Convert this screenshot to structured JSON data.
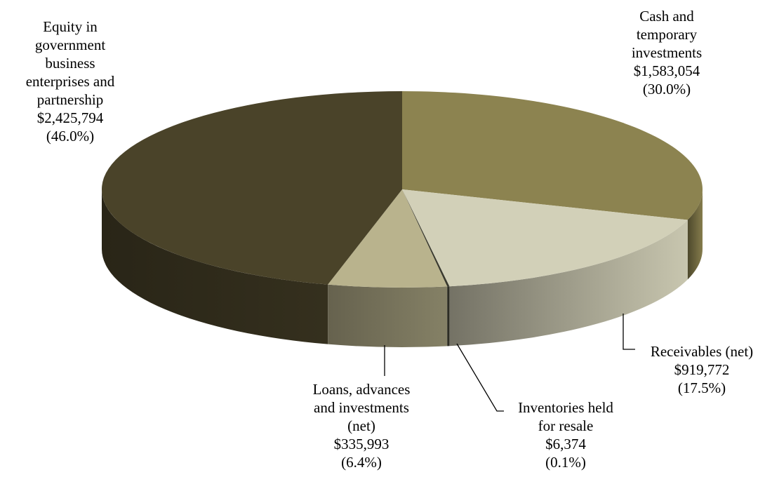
{
  "chart_data": {
    "type": "pie",
    "style": "3d",
    "slices": [
      {
        "label_lines": [
          "Cash and",
          "temporary",
          "investments"
        ],
        "value": 1583054,
        "value_text": "$1,583,054",
        "percent": 30.0,
        "percent_text": "(30.0%)",
        "color": "#8c8350"
      },
      {
        "label_lines": [
          "Receivables (net)"
        ],
        "value": 919772,
        "value_text": "$919,772",
        "percent": 17.5,
        "percent_text": "(17.5%)",
        "color": "#d2d0b8"
      },
      {
        "label_lines": [
          "Inventories held",
          "for resale"
        ],
        "value": 6374,
        "value_text": "$6,374",
        "percent": 0.1,
        "percent_text": "(0.1%)",
        "color": "#3a3a2e"
      },
      {
        "label_lines": [
          "Loans, advances",
          "and investments",
          "(net)"
        ],
        "value": 335993,
        "value_text": "$335,993",
        "percent": 6.4,
        "percent_text": "(6.4%)",
        "color": "#b9b38d"
      },
      {
        "label_lines": [
          "Equity in",
          "government",
          "business",
          "enterprises and",
          "partnership"
        ],
        "value": 2425794,
        "value_text": "$2,425,794",
        "percent": 46.0,
        "percent_text": "(46.0%)",
        "color": "#4a4329"
      }
    ]
  }
}
